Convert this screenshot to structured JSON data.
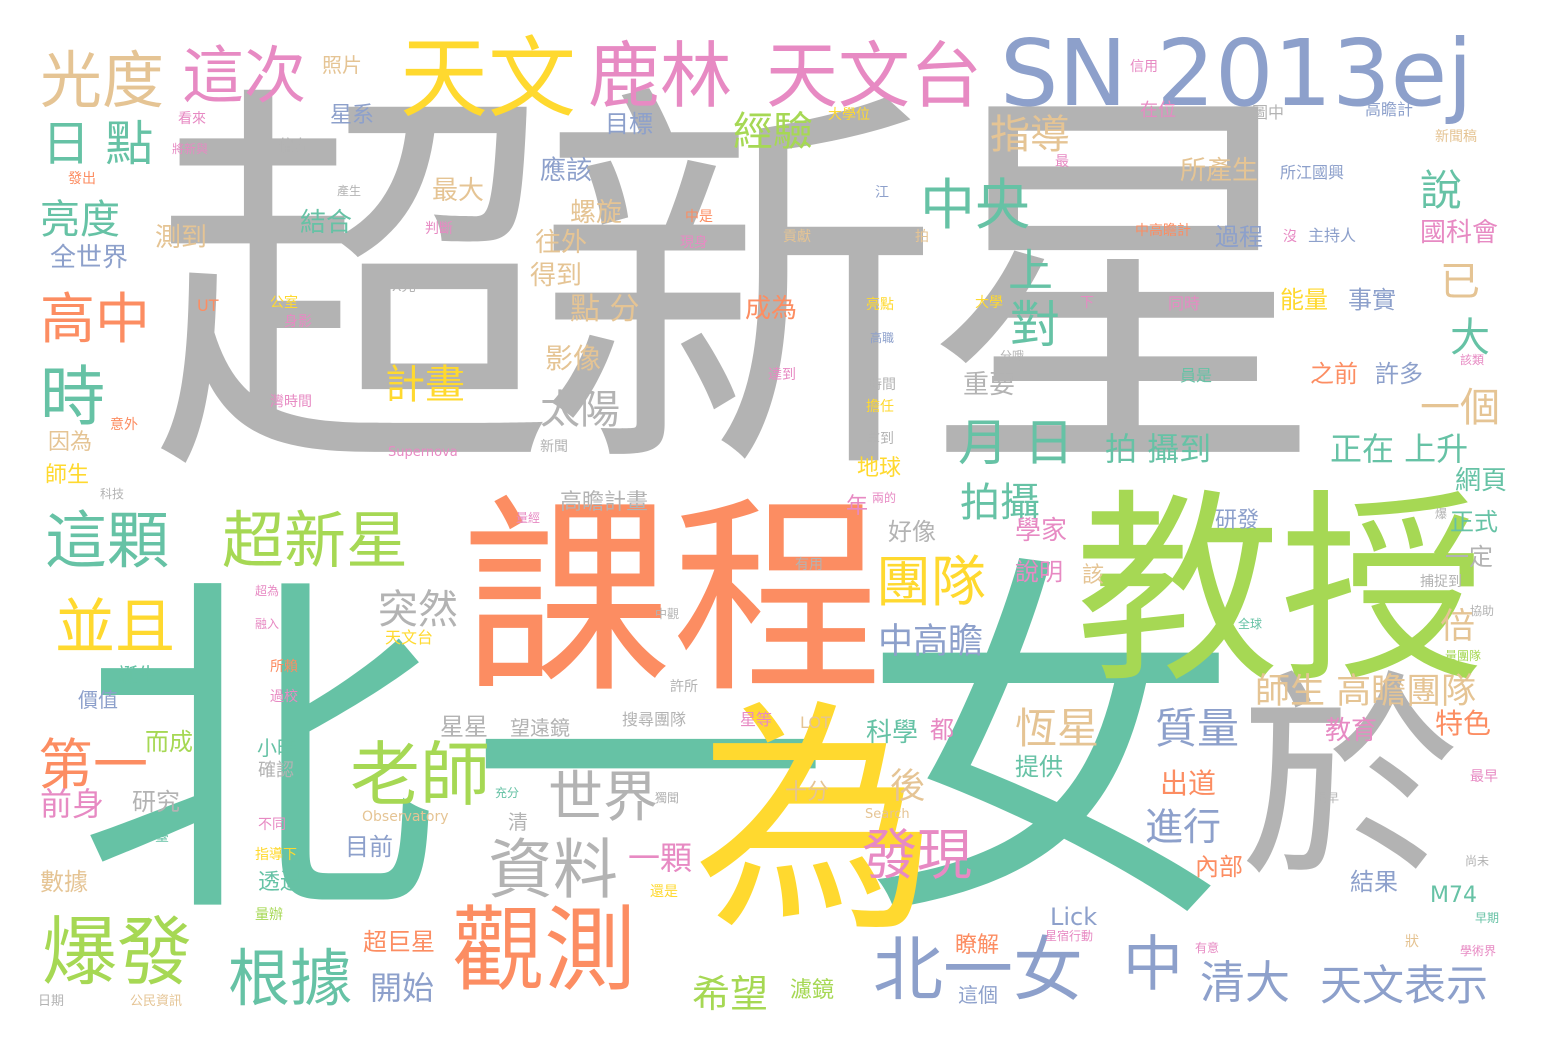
{
  "palette": [
    "#66c2a5",
    "#fc8d62",
    "#8da0cb",
    "#e78ac3",
    "#a6d854",
    "#ffd92f",
    "#e5c494",
    "#b3b3b3"
  ],
  "words": {
    "chaoxinxing": "超新星",
    "beiyinv_bei": "北",
    "beiyinv_yi": "一",
    "beiyinv_nv": "女",
    "kecheng": "課程",
    "jiaoshou": "教授",
    "wei": "為",
    "yu": "於",
    "sn": "SN 2013ej",
    "tianwen": "天文",
    "lulin": "鹿林",
    "tianwentai": "天文台",
    "guangdu": "光度",
    "zheci": "這次",
    "ri_dian": "日 點",
    "zhongyang": "中央",
    "shang": "上",
    "dui": "對",
    "liangdu": "亮度",
    "gaozhong": "高中",
    "shi": "時",
    "zheke": "這顆",
    "chaoxinxing2": "超新星",
    "bingqie": "並且",
    "tuandui": "團隊",
    "laoshi": "老師",
    "shijie": "世界",
    "ziliao": "資料",
    "guance": "觀測",
    "baofa": "爆發",
    "genju": "根據",
    "beiyinv2": "北一女",
    "zhong": "中",
    "faxian": "發現",
    "qingda": "清大",
    "tianwenbiaoshi": "天文表示",
    "di_yi": "第一",
    "zhonggaozhan": "中高瞻",
    "yue_ri": "月 日",
    "paishe": "拍攝",
    "jihua": "計畫",
    "taiyang": "太陽",
    "turan": "突然",
    "jingyan": "經驗",
    "zhidao": "指導",
    "shuo": "說",
    "yi": "已",
    "da": "大",
    "yige": "一個",
    "zhengzai_shangsheng": "正在 上升",
    "pai_shedao": "拍 攝到",
    "dian_fen": "點 分",
    "heng_xing": "恆星",
    "zhiliang": "質量",
    "shisheng_gaozhan": "師生 高瞻團隊",
    "bei": "倍",
    "jinxing": "進行",
    "yike": "一顆",
    "hou": "後",
    "qianshen": "前身",
    "xiwang": "希望",
    "kaishi": "開始",
    "chuandao": "出道",
    "jiaoyu": "教育",
    "tese": "特色",
    "mubiao": "目標",
    "yinggai": "應該",
    "zuida": "最大",
    "luoxuan": "螺旋",
    "jiehe": "結合",
    "cedao": "測到",
    "quanshijie": "全世界",
    "wangwai": "往外",
    "dedao": "得到",
    "chengwei": "成為",
    "yingxiang": "影像",
    "zhongyao": "重要",
    "suochansheng": "所產生",
    "guocheng": "過程",
    "nengliang": "能量",
    "shishi": "事實",
    "guokehui": "國科會",
    "zhiqian": "之前",
    "xuduo": "許多",
    "wangye": "網頁",
    "zhengshi": "正式",
    "yiding": "一定",
    "zhaopian": "照片",
    "xingxi": "星系",
    "gaozhanjihua": "高瞻計畫",
    "haoxiang": "好像",
    "xuejia": "學家",
    "shuoming": "說明",
    "gai": "該",
    "yanfa": "研發",
    "kexue": "科學",
    "dou": "都",
    "tigong": "提供",
    "shifen": "十分",
    "mu_qian": "目前",
    "neibu": "內部",
    "jieguo": "結果",
    "m74": "M74",
    "lick": "Lick",
    "liaojie": "瞭解",
    "zhege": "這個",
    "lvjing": "濾鏡",
    "chaojuxing": "超巨星",
    "dier": "而成",
    "yanjiu": "研究",
    "qing": "清",
    "shuju": "數據",
    "toutguo": "透過",
    "shisheng": "師生",
    "yinwei": "因為",
    "jiazhi": "價值",
    "danshen": "誕生",
    "xingxing": "星星",
    "wangyuanjing": "望遠鏡",
    "xiaoshi": "小時",
    "queren": "確認",
    "dijiu": "地球",
    "nian": "年",
    "zaiwei": "在位",
    "tuzhong": "圖中",
    "gaozhanji": "高瞻計",
    "xinwengao": "新聞稿",
    "xinyong": "信用",
    "daxuewei": "大學位",
    "kanlai": "看來",
    "jiangxinyu": "將新與",
    "pianzuo": "偏左",
    "fachu": "發出",
    "chansheng": "產生",
    "zui": "最",
    "jiang": "江",
    "suojiangguoyu": "所江國興",
    "zhongshi": "中是",
    "xianshen": "現身",
    "gongxian": "貢獻",
    "pai": "拍",
    "zhonggaozhanji": "中高瞻計",
    "mei": "沒",
    "zhuchiren": "主持人",
    "panduan": "判斷",
    "xguang": "X光",
    "ut": "UT",
    "gongshi": "公室",
    "shenying": "身影",
    "liangdian": "亮點",
    "daxue": "大學",
    "xia": "下",
    "tongshi": "同時",
    "gaozheng": "高職",
    "fenxi": "分哦",
    "yuanshi": "員是",
    "gaishu": "該類",
    "yiwai": "意外",
    "wanshijian": "灣時間",
    "shijian": "時間",
    "danren": "擔任",
    "xiaodao": "達到",
    "nadao": "拿到",
    "kexuan": "科技",
    "supernova": "Supernova",
    "xinwen": "新聞",
    "liangde": "兩的",
    "youyong": "有用",
    "zhongjian": "中觀",
    "chaowei": "超為",
    "rongru": "融入",
    "tianwentai2": "天文台",
    "suolai": "所賴",
    "guoxiao": "過校",
    "xusheng": "許所",
    "sousuntuandui": "搜尋團隊",
    "xingdeng": "星等",
    "lot": "LOT",
    "zuizao": "最早",
    "search": "Search",
    "observatory": "Observatory",
    "chongfen": "充分",
    "jiangnan": "獨聞",
    "henzao": "很早",
    "butong": "不同",
    "zhidaoxia": "指導下",
    "tai": "臺",
    "zhuangyuan": "還是",
    "shangwei": "尚未",
    "zaoqi": "早期",
    "zhuang": "狀",
    "xingdongxing": "星宿行動",
    "youyi": "有意",
    "xueshujie": "學術界",
    "liangbian": "量辦",
    "riqi": "日期",
    "gongmin": "公民資訊",
    "quanqiu": "全球",
    "liangtuandui": "量團隊",
    "buzhuodao": "捕捉到",
    "bangzhu": "協助",
    "bao": "爆",
    "zhongjing": "量經"
  }
}
